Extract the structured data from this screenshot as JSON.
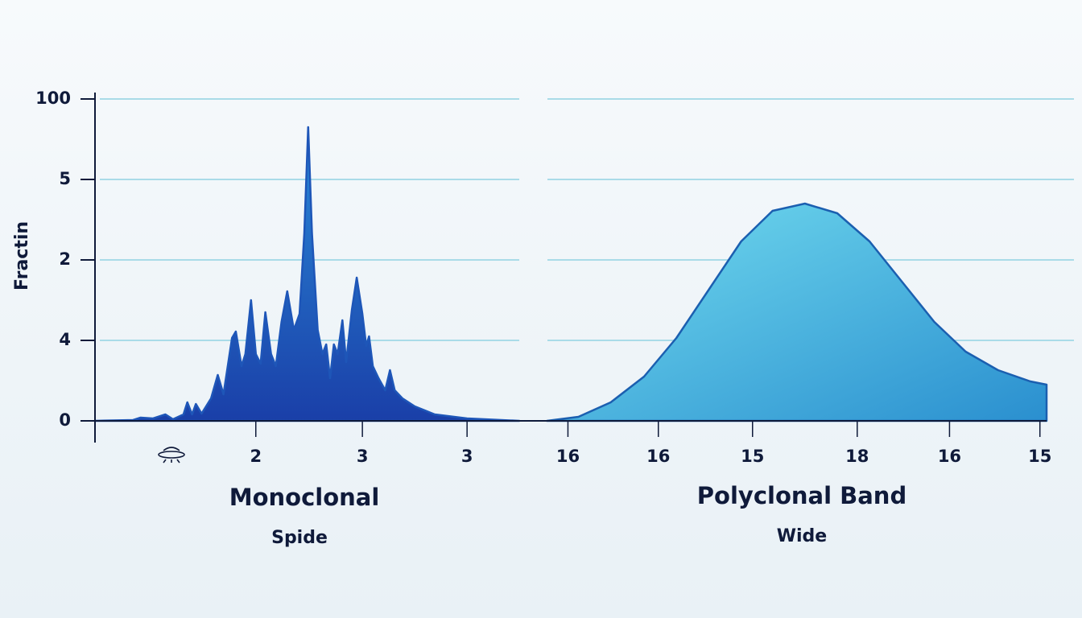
{
  "chart_data": {
    "type": "area",
    "y_label": "Fractin",
    "annotations": [
      {
        "title": "Monoclonal",
        "subtitle": "Spide"
      },
      {
        "title": "Polyclonal Band",
        "subtitle": "Wide"
      }
    ],
    "xlim": [
      0,
      10
    ],
    "ylim": [
      0,
      4
    ],
    "yticks": [
      {
        "value": 0,
        "label": "0"
      },
      {
        "value": 1,
        "label": "4"
      },
      {
        "value": 2,
        "label": "2"
      },
      {
        "value": 3,
        "label": "5"
      },
      {
        "value": 4,
        "label": "100"
      }
    ],
    "xticks": [
      {
        "value": 1.69,
        "label": "2"
      },
      {
        "value": 2.81,
        "label": "3"
      },
      {
        "value": 3.91,
        "label": "3"
      },
      {
        "value": 4.97,
        "label": "16"
      },
      {
        "value": 5.92,
        "label": "16"
      },
      {
        "value": 6.91,
        "label": "15"
      },
      {
        "value": 8.01,
        "label": "18"
      },
      {
        "value": 8.98,
        "label": "16"
      },
      {
        "value": 9.93,
        "label": "15"
      }
    ],
    "grid": true,
    "series": [
      {
        "name": "Monoclonal",
        "color": "#1e56b8",
        "x": [
          0,
          0.4,
          0.48,
          0.61,
          0.74,
          0.82,
          0.93,
          0.97,
          1.02,
          1.06,
          1.12,
          1.22,
          1.29,
          1.35,
          1.44,
          1.48,
          1.54,
          1.58,
          1.64,
          1.69,
          1.74,
          1.79,
          1.85,
          1.9,
          1.96,
          2.02,
          2.09,
          2.15,
          2.2,
          2.24,
          2.28,
          2.34,
          2.39,
          2.43,
          2.47,
          2.51,
          2.55,
          2.6,
          2.64,
          2.7,
          2.75,
          2.81,
          2.85,
          2.88,
          2.92,
          2.98,
          3.05,
          3.1,
          3.15,
          3.23,
          3.36,
          3.57,
          3.91,
          4.46
        ],
        "values": [
          0,
          0.01,
          0.04,
          0.03,
          0.08,
          0.02,
          0.08,
          0.23,
          0.08,
          0.21,
          0.09,
          0.28,
          0.57,
          0.33,
          1.03,
          1.11,
          0.68,
          0.83,
          1.5,
          0.83,
          0.71,
          1.35,
          0.83,
          0.68,
          1.23,
          1.61,
          1.13,
          1.33,
          2.33,
          3.65,
          2.33,
          1.13,
          0.83,
          0.95,
          0.53,
          0.95,
          0.83,
          1.25,
          0.73,
          1.38,
          1.78,
          1.33,
          0.93,
          1.05,
          0.68,
          0.53,
          0.38,
          0.63,
          0.38,
          0.28,
          0.18,
          0.08,
          0.03,
          0
        ]
      },
      {
        "name": "Polyclonal Band",
        "color": "#1b5fb0",
        "x": [
          4.75,
          5.08,
          5.42,
          5.77,
          6.11,
          6.45,
          6.79,
          7.12,
          7.46,
          7.8,
          8.14,
          8.48,
          8.82,
          9.15,
          9.49,
          9.83,
          10
        ],
        "values": [
          0,
          0.05,
          0.23,
          0.55,
          1.03,
          1.63,
          2.23,
          2.61,
          2.7,
          2.58,
          2.23,
          1.73,
          1.23,
          0.86,
          0.63,
          0.49,
          0.45
        ]
      }
    ]
  }
}
